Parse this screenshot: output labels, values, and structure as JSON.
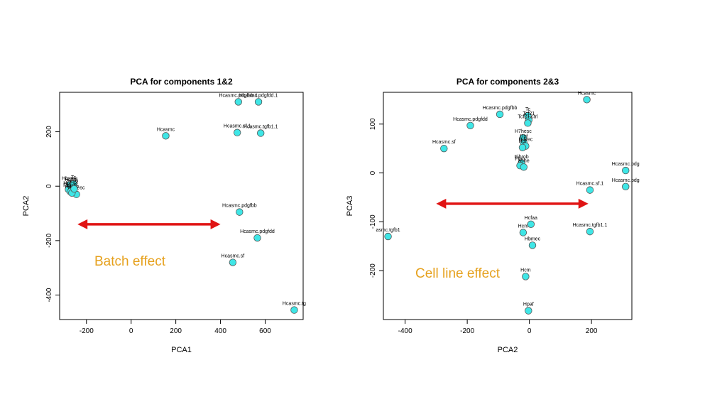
{
  "chart_data": [
    {
      "type": "scatter",
      "title": "PCA for components 1&2",
      "xlabel": "PCA1",
      "ylabel": "PCA2",
      "xlim": [
        -320,
        770
      ],
      "ylim": [
        -490,
        345
      ],
      "xticks": [
        -200,
        0,
        200,
        400,
        600
      ],
      "yticks": [
        -400,
        -200,
        0,
        200
      ],
      "marker_color": "#3fe6e6",
      "points": [
        {
          "x": 480,
          "y": 310,
          "label": "Hcasmc.pdgfbb.1"
        },
        {
          "x": 570,
          "y": 310,
          "label": "Hcasmc.pdgfdd.1"
        },
        {
          "x": 155,
          "y": 185,
          "label": "Hcasmc"
        },
        {
          "x": 475,
          "y": 197,
          "label": "Hcasmc.sf.1"
        },
        {
          "x": 580,
          "y": 195,
          "label": "Hcasmc.tgfb1.1"
        },
        {
          "x": 485,
          "y": -95,
          "label": "Hcasmc.pdgfbb"
        },
        {
          "x": 565,
          "y": -190,
          "label": "Hcasmc.pdgfdd"
        },
        {
          "x": 455,
          "y": -280,
          "label": "Hcasmc.sf"
        },
        {
          "x": 730,
          "y": -455,
          "label": "Hcasmc.tg"
        },
        {
          "x": -275,
          "y": 5,
          "label": "Hbmec"
        },
        {
          "x": -268,
          "y": 0,
          "label": "Hcfaa"
        },
        {
          "x": -262,
          "y": -5,
          "label": "Hcm"
        },
        {
          "x": -280,
          "y": -12,
          "label": "Hpaf"
        },
        {
          "x": -258,
          "y": 8,
          "label": "Tc"
        },
        {
          "x": -272,
          "y": -20,
          "label": "Fibrob"
        },
        {
          "x": -245,
          "y": -30,
          "label": "H7hesc"
        },
        {
          "x": -265,
          "y": -25,
          "label": "Huvec"
        },
        {
          "x": -255,
          "y": -10,
          "label": "Hpf"
        }
      ],
      "annotation": {
        "text": "Batch effect",
        "color": "#e6a11d"
      },
      "arrow": {
        "color": "#e01414",
        "x_from": -240,
        "x_to": 400,
        "y": -140
      }
    },
    {
      "type": "scatter",
      "title": "PCA for components 2&3",
      "xlabel": "PCA2",
      "ylabel": "PCA3",
      "xlim": [
        -470,
        330
      ],
      "ylim": [
        -300,
        165
      ],
      "xticks": [
        -400,
        -200,
        0,
        200
      ],
      "yticks": [
        -200,
        -100,
        0,
        100
      ],
      "marker_color": "#3fe6e6",
      "points": [
        {
          "x": 185,
          "y": 150,
          "label": "Hcasmc"
        },
        {
          "x": -95,
          "y": 120,
          "label": "Hcasmc.pdgfbb"
        },
        {
          "x": -190,
          "y": 97,
          "label": "Hcasmc.pdgfdd"
        },
        {
          "x": -5,
          "y": 117,
          "label": "Tc"
        },
        {
          "x": -2,
          "y": 108,
          "label": "Tcf21"
        },
        {
          "x": -5,
          "y": 102,
          "label": "Tcf21.ctrl"
        },
        {
          "x": -275,
          "y": 50,
          "label": "Hcasmc.sf"
        },
        {
          "x": -20,
          "y": 72,
          "label": "H7hesc"
        },
        {
          "x": -18,
          "y": 62,
          "label": "Hpf"
        },
        {
          "x": -12,
          "y": 55,
          "label": "Huvec"
        },
        {
          "x": -22,
          "y": 52,
          "label": "Hpf"
        },
        {
          "x": -25,
          "y": 20,
          "label": "Fibrob"
        },
        {
          "x": -30,
          "y": 15,
          "label": "Fbro"
        },
        {
          "x": -18,
          "y": 12,
          "label": "Ache"
        },
        {
          "x": 310,
          "y": 5,
          "label": "Hcasmc.pdg"
        },
        {
          "x": 310,
          "y": -28,
          "label": "Hcasmc.pdg"
        },
        {
          "x": 195,
          "y": -35,
          "label": "Hcasmc.sf.1"
        },
        {
          "x": 5,
          "y": -105,
          "label": "Hcfaa"
        },
        {
          "x": -20,
          "y": -122,
          "label": "Hcm"
        },
        {
          "x": 195,
          "y": -120,
          "label": "Hcasmc.tgfb1.1"
        },
        {
          "x": -455,
          "y": -130,
          "label": "asmc.tgfb1"
        },
        {
          "x": 10,
          "y": -148,
          "label": "Hbmec"
        },
        {
          "x": -12,
          "y": -212,
          "label": "Hcm"
        },
        {
          "x": -3,
          "y": -282,
          "label": "Hpaf"
        }
      ],
      "annotation": {
        "text": "Cell line effect",
        "color": "#e6a11d"
      },
      "arrow": {
        "color": "#e01414",
        "x_from": -300,
        "x_to": 190,
        "y": -63
      }
    }
  ]
}
